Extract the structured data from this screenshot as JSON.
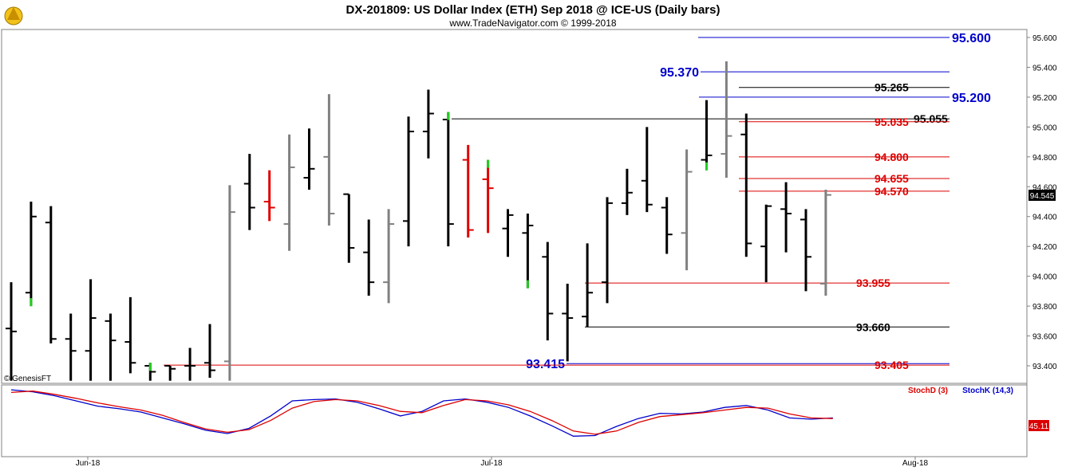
{
  "header": {
    "title": "DX-201809:  US Dollar Index (ETH) Sep 2018 @ ICE-US  (Daily bars)",
    "subtitle": "www.TradeNavigator.com © 1999-2018",
    "logo_icon": "trade-navigator-logo-icon",
    "watermark": "© GenesisFT"
  },
  "last_price": "94.545",
  "stoch_last": "45.11",
  "colors": {
    "bull": "#000000",
    "bear": "#000000",
    "gray": "#808080",
    "red_bar": "#e00000",
    "green_tick": "#22cc22",
    "level_blue": "#0000cc",
    "level_red": "#dd0000",
    "level_black": "#000000",
    "stoch_d": "#dd0000",
    "stoch_k": "#0000cc"
  },
  "chart_data": {
    "type": "ohlc",
    "ylim": [
      93.3,
      95.65
    ],
    "yticks": [
      "93.400",
      "93.600",
      "93.800",
      "94.000",
      "94.200",
      "94.400",
      "94.600",
      "94.800",
      "95.000",
      "95.200",
      "95.400",
      "95.600"
    ],
    "xtick_labels": [
      "Jun-18",
      "Jul-18",
      "Aug-18"
    ],
    "bars": [
      {
        "o": 93.65,
        "h": 93.96,
        "l": 93.3,
        "c": 93.63,
        "col": "k"
      },
      {
        "o": 93.89,
        "h": 94.5,
        "l": 93.8,
        "c": 94.4,
        "col": "k",
        "mark": "g"
      },
      {
        "o": 94.36,
        "h": 94.47,
        "l": 93.55,
        "c": 93.58,
        "col": "k"
      },
      {
        "o": 93.58,
        "h": 93.75,
        "l": 93.3,
        "c": 93.5,
        "col": "k"
      },
      {
        "o": 93.5,
        "h": 93.98,
        "l": 93.3,
        "c": 93.72,
        "col": "k"
      },
      {
        "o": 93.7,
        "h": 93.75,
        "l": 93.3,
        "c": 93.57,
        "col": "k"
      },
      {
        "o": 93.56,
        "h": 93.86,
        "l": 93.35,
        "c": 93.42,
        "col": "k"
      },
      {
        "o": 93.4,
        "h": 93.42,
        "l": 93.3,
        "c": 93.36,
        "col": "k",
        "mark": "g"
      },
      {
        "o": 93.4,
        "h": 93.4,
        "l": 93.3,
        "c": 93.38,
        "col": "k"
      },
      {
        "o": 93.4,
        "h": 93.52,
        "l": 93.3,
        "c": 93.4,
        "col": "k"
      },
      {
        "o": 93.42,
        "h": 93.68,
        "l": 93.32,
        "c": 93.37,
        "col": "k"
      },
      {
        "o": 93.43,
        "h": 94.61,
        "l": 93.3,
        "c": 94.43,
        "col": "gray"
      },
      {
        "o": 94.62,
        "h": 94.82,
        "l": 94.31,
        "c": 94.46,
        "col": "k"
      },
      {
        "o": 94.5,
        "h": 94.71,
        "l": 94.37,
        "c": 94.46,
        "col": "r"
      },
      {
        "o": 94.35,
        "h": 94.95,
        "l": 94.17,
        "c": 94.73,
        "col": "gray"
      },
      {
        "o": 94.66,
        "h": 94.99,
        "l": 94.58,
        "c": 94.72,
        "col": "k"
      },
      {
        "o": 94.8,
        "h": 95.22,
        "l": 94.34,
        "c": 94.42,
        "col": "gray"
      },
      {
        "o": 94.55,
        "h": 94.55,
        "l": 94.09,
        "c": 94.19,
        "col": "k"
      },
      {
        "o": 94.16,
        "h": 94.38,
        "l": 93.87,
        "c": 93.96,
        "col": "k"
      },
      {
        "o": 93.96,
        "h": 94.45,
        "l": 93.82,
        "c": 94.35,
        "col": "gray"
      },
      {
        "o": 94.37,
        "h": 95.07,
        "l": 94.2,
        "c": 94.97,
        "col": "k"
      },
      {
        "o": 94.97,
        "h": 95.25,
        "l": 94.79,
        "c": 95.09,
        "col": "k"
      },
      {
        "o": 95.05,
        "h": 95.1,
        "l": 94.2,
        "c": 94.35,
        "col": "k",
        "mark": "g"
      },
      {
        "o": 94.78,
        "h": 94.88,
        "l": 94.26,
        "c": 94.31,
        "col": "r"
      },
      {
        "o": 94.65,
        "h": 94.78,
        "l": 94.29,
        "c": 94.59,
        "col": "r",
        "mark": "g"
      },
      {
        "o": 94.32,
        "h": 94.45,
        "l": 94.13,
        "c": 94.41,
        "col": "k"
      },
      {
        "o": 94.29,
        "h": 94.42,
        "l": 93.92,
        "c": 94.34,
        "col": "k",
        "mark": "g"
      },
      {
        "o": 94.13,
        "h": 94.23,
        "l": 93.57,
        "c": 93.75,
        "col": "k"
      },
      {
        "o": 93.75,
        "h": 93.95,
        "l": 93.43,
        "c": 93.72,
        "col": "k"
      },
      {
        "o": 93.73,
        "h": 94.22,
        "l": 93.66,
        "c": 93.89,
        "col": "k"
      },
      {
        "o": 93.96,
        "h": 94.53,
        "l": 93.82,
        "c": 94.49,
        "col": "k"
      },
      {
        "o": 94.49,
        "h": 94.72,
        "l": 94.41,
        "c": 94.56,
        "col": "k"
      },
      {
        "o": 94.64,
        "h": 95.0,
        "l": 94.43,
        "c": 94.48,
        "col": "k"
      },
      {
        "o": 94.46,
        "h": 94.53,
        "l": 94.15,
        "c": 94.28,
        "col": "k"
      },
      {
        "o": 94.29,
        "h": 94.85,
        "l": 94.04,
        "c": 94.7,
        "col": "gray"
      },
      {
        "o": 94.78,
        "h": 95.18,
        "l": 94.71,
        "c": 94.81,
        "col": "k",
        "mark": "g"
      },
      {
        "o": 94.82,
        "h": 95.44,
        "l": 94.66,
        "c": 94.94,
        "col": "gray"
      },
      {
        "o": 94.95,
        "h": 95.09,
        "l": 94.13,
        "c": 94.22,
        "col": "k"
      },
      {
        "o": 94.2,
        "h": 94.48,
        "l": 93.96,
        "c": 94.47,
        "col": "k"
      },
      {
        "o": 94.45,
        "h": 94.63,
        "l": 94.16,
        "c": 94.42,
        "col": "k"
      },
      {
        "o": 94.38,
        "h": 94.45,
        "l": 93.9,
        "c": 94.13,
        "col": "k"
      },
      {
        "o": 93.95,
        "h": 94.58,
        "l": 93.87,
        "c": 94.545,
        "col": "gray"
      }
    ],
    "levels": [
      {
        "value": 95.6,
        "label": "95.600",
        "color": "blue",
        "size": "big",
        "x_from": 875
      },
      {
        "value": 95.37,
        "label": "95.370",
        "color": "blue",
        "size": "big",
        "x_from": 878,
        "label_left": true
      },
      {
        "value": 95.265,
        "label": "95.265",
        "color": "black",
        "size": "mid",
        "x_from": 926
      },
      {
        "value": 95.2,
        "label": "95.200",
        "color": "blue",
        "size": "big",
        "x_from": 876
      },
      {
        "value": 95.055,
        "label": "95.055",
        "color": "black",
        "size": "mid",
        "x_from": 566,
        "label_x": 1145
      },
      {
        "value": 95.035,
        "label": "95.035",
        "color": "red",
        "size": "mid",
        "x_from": 926
      },
      {
        "value": 94.8,
        "label": "94.800",
        "color": "red",
        "size": "mid",
        "x_from": 926
      },
      {
        "value": 94.655,
        "label": "94.655",
        "color": "red",
        "size": "mid",
        "x_from": 926
      },
      {
        "value": 94.57,
        "label": "94.570",
        "color": "red",
        "size": "mid",
        "x_from": 926
      },
      {
        "value": 93.955,
        "label": "93.955",
        "color": "red",
        "size": "mid",
        "x_from": 733
      },
      {
        "value": 93.66,
        "label": "93.660",
        "color": "black",
        "size": "mid",
        "x_from": 733
      },
      {
        "value": 93.415,
        "label": "93.415",
        "color": "blue",
        "size": "big",
        "x_from": 710,
        "label_left": true
      },
      {
        "value": 93.405,
        "label": "93.405",
        "color": "red",
        "size": "mid",
        "x_from": 205
      }
    ],
    "stochastic": {
      "legend_d": "StochD (3)",
      "legend_k": "StochK (14,3)",
      "k": [
        95,
        92,
        86,
        78,
        70,
        66,
        61,
        52,
        43,
        33,
        28,
        36,
        55,
        78,
        80,
        81,
        76,
        66,
        55,
        62,
        78,
        81,
        76,
        68,
        55,
        40,
        24,
        25,
        39,
        51,
        59,
        58,
        61,
        68,
        71,
        64,
        52,
        50,
        52
      ],
      "d": [
        91,
        93,
        88,
        82,
        75,
        69,
        64,
        56,
        45,
        35,
        30,
        34,
        48,
        67,
        77,
        80,
        78,
        71,
        62,
        60,
        71,
        80,
        78,
        72,
        62,
        48,
        32,
        27,
        32,
        45,
        54,
        57,
        60,
        64,
        68,
        67,
        58,
        52,
        51
      ]
    }
  }
}
